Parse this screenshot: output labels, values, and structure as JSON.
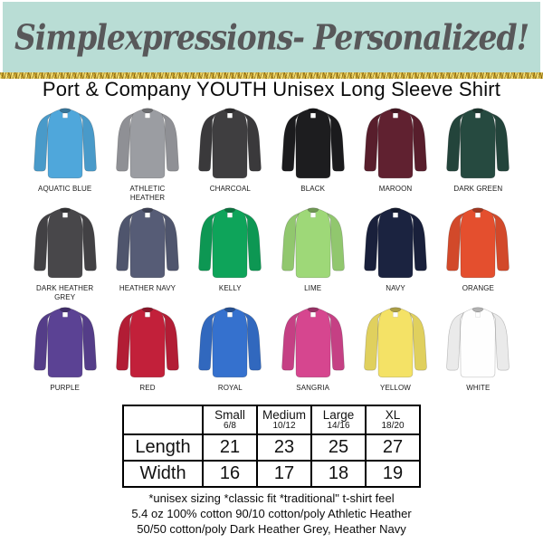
{
  "header": {
    "brand": "Simplexpressions- Personalized!",
    "bg_color": "#b9ddd5",
    "text_color": "#58585a",
    "glitter_accent": "#d4af37"
  },
  "title": "Port & Company YOUTH Unisex Long Sleeve Shirt",
  "shirts": [
    {
      "label": "AQUATIC BLUE",
      "color": "#4fa7db"
    },
    {
      "label": "ATHLETIC HEATHER",
      "color": "#9b9da2"
    },
    {
      "label": "CHARCOAL",
      "color": "#3f3e40"
    },
    {
      "label": "BLACK",
      "color": "#1d1d1f"
    },
    {
      "label": "MAROON",
      "color": "#602130"
    },
    {
      "label": "DARK GREEN",
      "color": "#264a40"
    },
    {
      "label": "DARK HEATHER GREY",
      "color": "#48474a"
    },
    {
      "label": "HEATHER NAVY",
      "color": "#565c76"
    },
    {
      "label": "KELLY",
      "color": "#0ea45a"
    },
    {
      "label": "LIME",
      "color": "#9ed878"
    },
    {
      "label": "NAVY",
      "color": "#1b2340"
    },
    {
      "label": "ORANGE",
      "color": "#e44f2e"
    },
    {
      "label": "PURPLE",
      "color": "#5b4294"
    },
    {
      "label": "RED",
      "color": "#c2203a"
    },
    {
      "label": "ROYAL",
      "color": "#3571ce"
    },
    {
      "label": "SANGRIA",
      "color": "#d6468f"
    },
    {
      "label": "YELLOW",
      "color": "#f4e266"
    },
    {
      "label": "WHITE",
      "color": "#fefefe"
    }
  ],
  "size_chart": {
    "type": "table",
    "columns": [
      {
        "size": "Small",
        "range": "6/8"
      },
      {
        "size": "Medium",
        "range": "10/12"
      },
      {
        "size": "Large",
        "range": "14/16"
      },
      {
        "size": "XL",
        "range": "18/20"
      }
    ],
    "rows": [
      {
        "label": "Length",
        "values": [
          "21",
          "23",
          "25",
          "27"
        ]
      },
      {
        "label": "Width",
        "values": [
          "16",
          "17",
          "18",
          "19"
        ]
      }
    ]
  },
  "footer_lines": [
    "*unisex sizing *classic fit *traditional\" t-shirt feel",
    "5.4 oz 100% cotton 90/10 cotton/poly Athletic Heather",
    "50/50 cotton/poly Dark Heather Grey, Heather Navy"
  ]
}
